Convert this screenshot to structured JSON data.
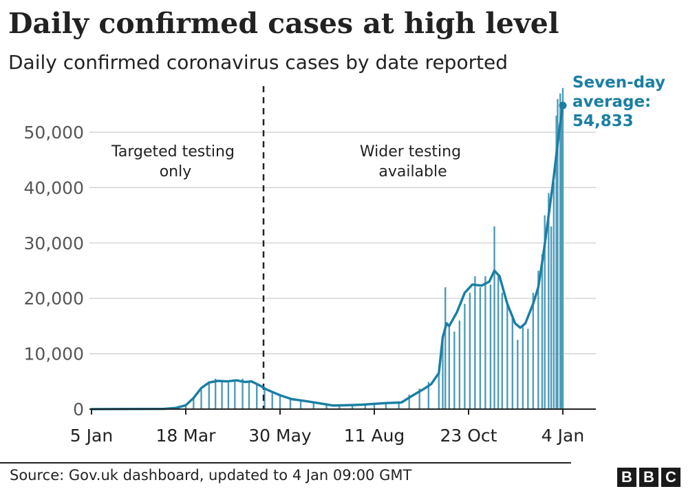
{
  "title": "Daily confirmed cases at high level",
  "subtitle": "Daily confirmed coronavirus cases by date reported",
  "source": "Source: Gov.uk dashboard, updated to 4 Jan 09:00 GMT",
  "brand": [
    "B",
    "B",
    "C"
  ],
  "colors": {
    "bars": "#4e9bb9",
    "line": "#1a7fa3",
    "grid": "#cccccc",
    "annotation": "#1a7fa3"
  },
  "chart_data": {
    "type": "bar",
    "title": "Daily confirmed cases at high level",
    "subtitle": "Daily confirmed coronavirus cases by date reported",
    "x_range": [
      "2020-01-05",
      "2021-01-04"
    ],
    "xticks": [
      "5 Jan",
      "18 Mar",
      "30 May",
      "11 Aug",
      "23 Oct",
      "4 Jan"
    ],
    "yticks": [
      "0",
      "10,000",
      "20,000",
      "30,000",
      "40,000",
      "50,000"
    ],
    "ylim": [
      0,
      58000
    ],
    "grid": true,
    "series": [
      {
        "kind": "bar",
        "points": [
          [
            "2020-01-05",
            0
          ],
          [
            "2020-02-01",
            0
          ],
          [
            "2020-03-01",
            40
          ],
          [
            "2020-03-10",
            300
          ],
          [
            "2020-03-18",
            700
          ],
          [
            "2020-03-24",
            2000
          ],
          [
            "2020-03-30",
            3500
          ],
          [
            "2020-04-05",
            4800
          ],
          [
            "2020-04-10",
            5500
          ],
          [
            "2020-04-15",
            5000
          ],
          [
            "2020-04-20",
            4800
          ],
          [
            "2020-04-25",
            5000
          ],
          [
            "2020-05-01",
            5500
          ],
          [
            "2020-05-06",
            5000
          ],
          [
            "2020-05-12",
            4500
          ],
          [
            "2020-05-18",
            3800
          ],
          [
            "2020-05-24",
            3000
          ],
          [
            "2020-05-30",
            2300
          ],
          [
            "2020-06-07",
            1700
          ],
          [
            "2020-06-15",
            1400
          ],
          [
            "2020-06-25",
            1100
          ],
          [
            "2020-07-05",
            700
          ],
          [
            "2020-07-15",
            650
          ],
          [
            "2020-07-25",
            750
          ],
          [
            "2020-08-04",
            850
          ],
          [
            "2020-08-11",
            1000
          ],
          [
            "2020-08-20",
            1100
          ],
          [
            "2020-08-30",
            1400
          ],
          [
            "2020-09-07",
            2600
          ],
          [
            "2020-09-15",
            3700
          ],
          [
            "2020-09-22",
            4900
          ],
          [
            "2020-09-30",
            7000
          ],
          [
            "2020-10-03",
            13000
          ],
          [
            "2020-10-05",
            22000
          ],
          [
            "2020-10-08",
            15000
          ],
          [
            "2020-10-12",
            14000
          ],
          [
            "2020-10-16",
            16000
          ],
          [
            "2020-10-20",
            19000
          ],
          [
            "2020-10-24",
            21000
          ],
          [
            "2020-10-28",
            24000
          ],
          [
            "2020-11-01",
            22000
          ],
          [
            "2020-11-05",
            24000
          ],
          [
            "2020-11-09",
            22500
          ],
          [
            "2020-11-12",
            33000
          ],
          [
            "2020-11-15",
            24000
          ],
          [
            "2020-11-18",
            21000
          ],
          [
            "2020-11-22",
            19000
          ],
          [
            "2020-11-26",
            17000
          ],
          [
            "2020-11-30",
            12500
          ],
          [
            "2020-12-04",
            15000
          ],
          [
            "2020-12-08",
            14500
          ],
          [
            "2020-12-12",
            21000
          ],
          [
            "2020-12-16",
            25000
          ],
          [
            "2020-12-19",
            28000
          ],
          [
            "2020-12-21",
            35000
          ],
          [
            "2020-12-24",
            39000
          ],
          [
            "2020-12-26",
            33000
          ],
          [
            "2020-12-28",
            41000
          ],
          [
            "2020-12-30",
            53000
          ],
          [
            "2020-12-31",
            56000
          ],
          [
            "2021-01-02",
            57000
          ],
          [
            "2021-01-03",
            54000
          ],
          [
            "2021-01-04",
            58000
          ]
        ]
      },
      {
        "kind": "line",
        "points": [
          [
            "2020-01-05",
            0
          ],
          [
            "2020-03-01",
            50
          ],
          [
            "2020-03-10",
            200
          ],
          [
            "2020-03-18",
            700
          ],
          [
            "2020-03-24",
            2000
          ],
          [
            "2020-03-30",
            3800
          ],
          [
            "2020-04-05",
            4800
          ],
          [
            "2020-04-12",
            5100
          ],
          [
            "2020-04-19",
            5000
          ],
          [
            "2020-04-26",
            5200
          ],
          [
            "2020-05-03",
            4900
          ],
          [
            "2020-05-08",
            5000
          ],
          [
            "2020-05-14",
            4300
          ],
          [
            "2020-05-20",
            3500
          ],
          [
            "2020-05-26",
            2900
          ],
          [
            "2020-05-30",
            2500
          ],
          [
            "2020-06-08",
            1800
          ],
          [
            "2020-06-20",
            1400
          ],
          [
            "2020-07-01",
            1000
          ],
          [
            "2020-07-10",
            650
          ],
          [
            "2020-07-20",
            700
          ],
          [
            "2020-08-01",
            800
          ],
          [
            "2020-08-11",
            950
          ],
          [
            "2020-08-20",
            1100
          ],
          [
            "2020-09-01",
            1200
          ],
          [
            "2020-09-10",
            2500
          ],
          [
            "2020-09-18",
            3600
          ],
          [
            "2020-09-24",
            4500
          ],
          [
            "2020-09-30",
            6500
          ],
          [
            "2020-10-03",
            13000
          ],
          [
            "2020-10-06",
            15500
          ],
          [
            "2020-10-08",
            15000
          ],
          [
            "2020-10-14",
            17500
          ],
          [
            "2020-10-20",
            21000
          ],
          [
            "2020-10-26",
            22500
          ],
          [
            "2020-11-02",
            22300
          ],
          [
            "2020-11-08",
            23000
          ],
          [
            "2020-11-12",
            25000
          ],
          [
            "2020-11-16",
            24000
          ],
          [
            "2020-11-22",
            19000
          ],
          [
            "2020-11-28",
            15500
          ],
          [
            "2020-12-02",
            14700
          ],
          [
            "2020-12-06",
            15500
          ],
          [
            "2020-12-12",
            19000
          ],
          [
            "2020-12-16",
            22000
          ],
          [
            "2020-12-20",
            28000
          ],
          [
            "2020-12-24",
            35000
          ],
          [
            "2020-12-28",
            42000
          ],
          [
            "2021-01-01",
            50000
          ],
          [
            "2021-01-04",
            54833
          ]
        ]
      }
    ],
    "annotations": [
      {
        "at": "2020-05-24",
        "kind": "dashed-divider"
      },
      {
        "text_lines": [
          "Targeted testing",
          "only"
        ]
      },
      {
        "text_lines": [
          "Wider testing",
          "available"
        ]
      },
      {
        "text_lines": [
          "Seven-day",
          "average:",
          "54,833"
        ],
        "point": [
          "2021-01-04",
          54833
        ]
      }
    ]
  }
}
